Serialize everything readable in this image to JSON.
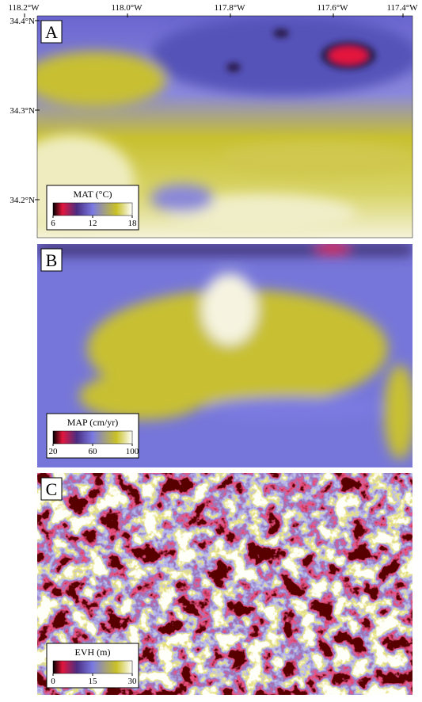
{
  "axes": {
    "lon_labels": [
      "118.2°W",
      "118.0°W",
      "117.8°W",
      "117.6°W",
      "117.4°W"
    ],
    "lat_labels": [
      "34.4°N",
      "34.3°N",
      "34.2°N"
    ]
  },
  "panels": [
    {
      "letter": "A",
      "legend": {
        "title": "MAT (°C)",
        "ticks": [
          6,
          12,
          18
        ]
      }
    },
    {
      "letter": "B",
      "legend": {
        "title": "MAP (cm/yr)",
        "ticks": [
          20,
          60,
          100
        ]
      }
    },
    {
      "letter": "C",
      "legend": {
        "title": "EVH (m)",
        "ticks": [
          0,
          15,
          30
        ]
      }
    }
  ]
}
